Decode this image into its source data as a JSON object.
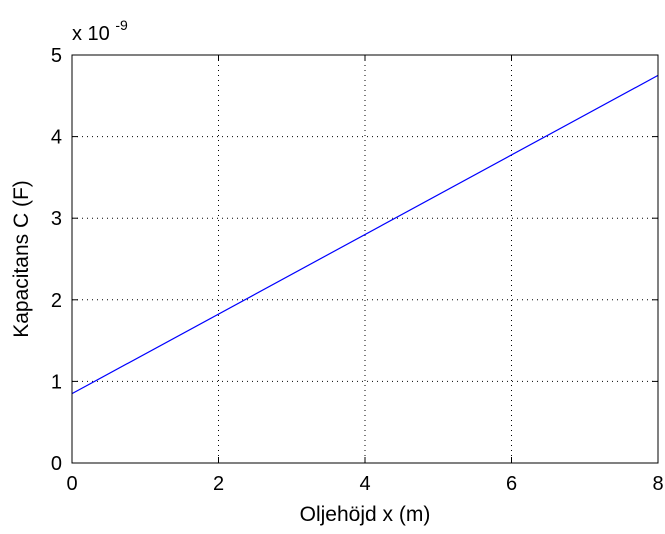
{
  "chart_data": {
    "type": "line",
    "title": "",
    "xlabel": "Oljehöjd x (m)",
    "ylabel": "Kapacitans C (F)",
    "xlim": [
      0,
      8
    ],
    "ylim": [
      0,
      5
    ],
    "x_ticks": [
      "0",
      "2",
      "4",
      "6",
      "8"
    ],
    "y_ticks": [
      "0",
      "1",
      "2",
      "3",
      "4",
      "5"
    ],
    "y_exponent_prefix": "x 10",
    "y_exponent_power": "-9",
    "grid": true,
    "series": [
      {
        "x": [
          0,
          8
        ],
        "y": [
          0.85,
          4.75
        ],
        "color": "#0000ff"
      }
    ]
  }
}
